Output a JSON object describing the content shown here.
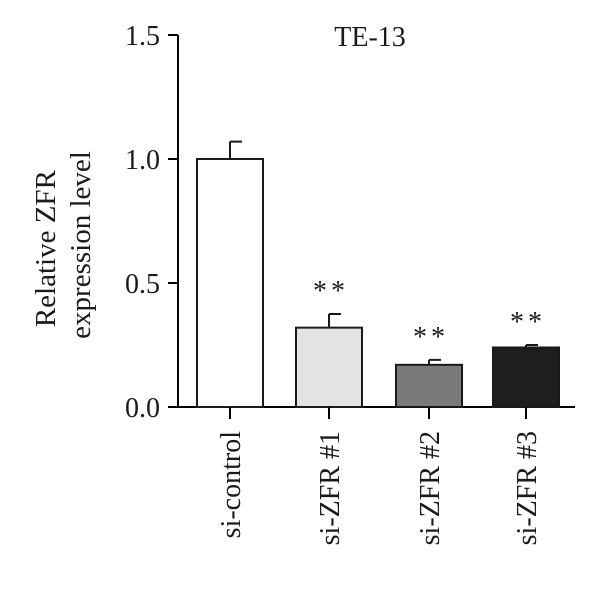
{
  "chart_data": {
    "type": "bar",
    "title": "TE-13",
    "ylabel_lines": [
      "Relative ZFR",
      "expression level"
    ],
    "xlabel": "",
    "ylim": [
      0,
      1.5
    ],
    "yticks": [
      "0.0",
      "0.5",
      "1.0",
      "1.5"
    ],
    "ytick_values": [
      0,
      0.5,
      1.0,
      1.5
    ],
    "categories": [
      "si-control",
      "si-ZFR #1",
      "si-ZFR #2",
      "si-ZFR #3"
    ],
    "values": [
      1.0,
      0.32,
      0.17,
      0.24
    ],
    "errors": [
      0.07,
      0.055,
      0.02,
      0.01
    ],
    "bar_colors": [
      "#ffffff",
      "#e3e3e3",
      "#7a7a7a",
      "#1e1e1e"
    ],
    "significance": [
      "",
      "**",
      "**",
      "**"
    ],
    "grid": false,
    "legend": "none"
  }
}
